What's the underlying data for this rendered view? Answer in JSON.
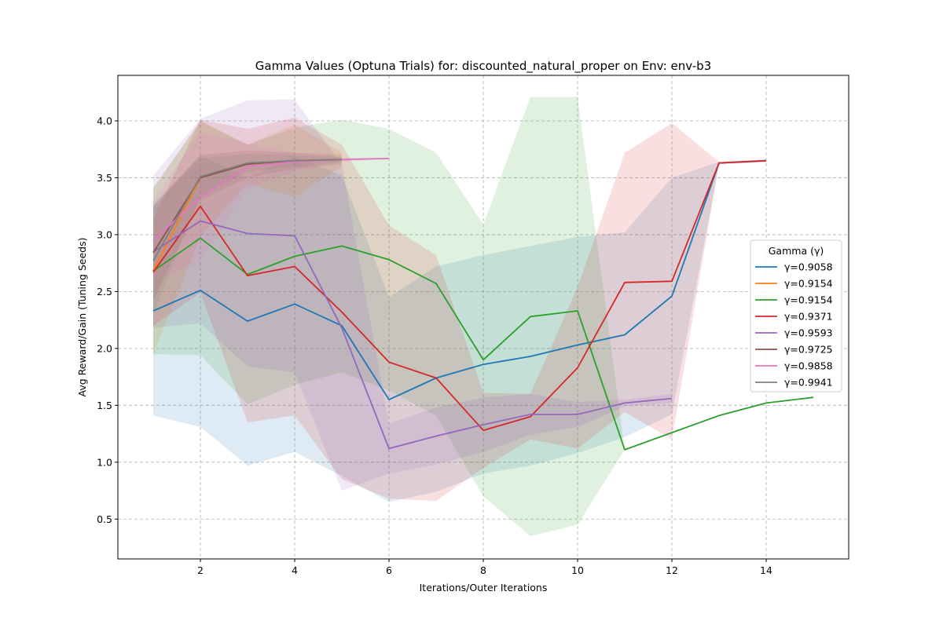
{
  "chart_data": {
    "type": "line",
    "title": "Gamma Values (Optuna Trials) for: discounted_natural_proper on Env: env-b3",
    "xlabel": "Iterations/Outer Iterations",
    "ylabel": "Avg Reward/Gain (Tuning Seeds)",
    "xlim": [
      0.25,
      15.75
    ],
    "ylim": [
      0.15,
      4.4
    ],
    "xticks": [
      2,
      4,
      6,
      8,
      10,
      12,
      14
    ],
    "yticks": [
      0.5,
      1.0,
      1.5,
      2.0,
      2.5,
      3.0,
      3.5,
      4.0
    ],
    "xtick_labels": [
      "2",
      "4",
      "6",
      "8",
      "10",
      "12",
      "14"
    ],
    "ytick_labels": [
      "0.5",
      "1.0",
      "1.5",
      "2.0",
      "2.5",
      "3.0",
      "3.5",
      "4.0"
    ],
    "grid": true,
    "legend": {
      "title": "Gamma (γ)",
      "placement": "center-right"
    },
    "series": [
      {
        "name": "γ=0.9058",
        "color": "#1f77b4",
        "x": [
          1,
          2,
          3,
          4,
          5,
          6,
          7,
          8,
          9,
          10,
          11,
          12,
          13,
          14
        ],
        "y": [
          2.33,
          2.51,
          2.24,
          2.39,
          2.2,
          1.55,
          1.74,
          1.86,
          1.93,
          2.03,
          2.12,
          2.46,
          3.63,
          3.65
        ],
        "lower": [
          1.41,
          1.31,
          0.97,
          1.09,
          0.88,
          0.65,
          0.74,
          0.9,
          0.97,
          1.08,
          1.22,
          1.42,
          3.62,
          3.64
        ],
        "upper": [
          3.25,
          3.7,
          3.5,
          3.69,
          3.52,
          2.45,
          2.72,
          2.82,
          2.9,
          2.98,
          3.02,
          3.5,
          3.64,
          3.66
        ]
      },
      {
        "name": "γ=0.9154",
        "color": "#ff7f0e",
        "x": [
          1,
          2,
          3,
          4,
          5
        ],
        "y": [
          2.68,
          3.5,
          3.62,
          3.65,
          3.66
        ],
        "lower": [
          1.95,
          2.98,
          3.45,
          3.33,
          3.6
        ],
        "upper": [
          3.41,
          4.0,
          3.79,
          3.97,
          3.72
        ]
      },
      {
        "name": "γ=0.9154",
        "color": "#2ca02c",
        "x": [
          1,
          2,
          3,
          4,
          5,
          6,
          7,
          8,
          9,
          10,
          11,
          12,
          13,
          14,
          15
        ],
        "y": [
          2.68,
          2.97,
          2.65,
          2.81,
          2.9,
          2.78,
          2.57,
          1.9,
          2.28,
          2.33,
          1.11,
          1.26,
          1.41,
          1.52,
          1.57
        ],
        "lower": [
          1.95,
          1.94,
          1.51,
          1.68,
          1.79,
          1.63,
          1.41,
          0.7,
          0.35,
          0.45,
          1.11,
          1.26,
          1.41,
          1.52,
          1.57
        ],
        "upper": [
          3.41,
          4.0,
          3.79,
          3.94,
          4.01,
          3.93,
          3.72,
          3.09,
          4.21,
          4.21,
          1.11,
          1.26,
          1.41,
          1.52,
          1.57
        ]
      },
      {
        "name": "γ=0.9371",
        "color": "#d62728",
        "x": [
          1,
          2,
          3,
          4,
          5,
          6,
          7,
          8,
          9,
          10,
          11,
          12,
          13,
          14
        ],
        "y": [
          2.67,
          3.25,
          2.64,
          2.72,
          2.32,
          1.88,
          1.74,
          1.28,
          1.4,
          1.83,
          2.58,
          2.59,
          3.63,
          3.65
        ],
        "lower": [
          2.2,
          2.49,
          1.35,
          1.41,
          0.85,
          0.68,
          0.66,
          0.95,
          1.2,
          1.12,
          1.44,
          1.2,
          3.62,
          3.64
        ],
        "upper": [
          3.14,
          4.01,
          3.93,
          4.03,
          3.79,
          3.08,
          2.82,
          1.61,
          1.6,
          2.54,
          3.72,
          3.98,
          3.64,
          3.66
        ]
      },
      {
        "name": "γ=0.9593",
        "color": "#9467bd",
        "x": [
          1,
          2,
          3,
          4,
          5,
          6,
          7,
          8,
          9,
          10,
          11,
          12
        ],
        "y": [
          2.85,
          3.12,
          3.01,
          2.99,
          2.18,
          1.12,
          1.23,
          1.33,
          1.42,
          1.42,
          1.52,
          1.56
        ],
        "lower": [
          2.18,
          2.22,
          1.84,
          1.79,
          0.75,
          0.9,
          0.98,
          1.09,
          1.24,
          1.31,
          1.49,
          1.52
        ],
        "upper": [
          3.52,
          4.02,
          4.18,
          4.19,
          3.61,
          1.34,
          1.48,
          1.57,
          1.6,
          1.53,
          1.55,
          1.6
        ]
      },
      {
        "name": "γ=0.9725",
        "color": "#8c564b",
        "x": [
          1,
          2,
          3,
          4,
          5
        ],
        "y": [
          2.84,
          3.5,
          3.62,
          3.65,
          3.66
        ],
        "lower": [
          2.42,
          3.3,
          3.5,
          3.58,
          3.62
        ],
        "upper": [
          3.26,
          3.7,
          3.74,
          3.72,
          3.7
        ]
      },
      {
        "name": "γ=0.9858",
        "color": "#e377c2",
        "x": [
          1,
          2,
          3,
          4,
          5,
          6
        ],
        "y": [
          2.95,
          3.33,
          3.6,
          3.64,
          3.66,
          3.67
        ],
        "lower": [
          2.6,
          2.76,
          3.4,
          3.56,
          3.64,
          3.67
        ],
        "upper": [
          3.3,
          3.9,
          3.8,
          3.72,
          3.68,
          3.67
        ]
      },
      {
        "name": "γ=0.9941",
        "color": "#7f7f7f",
        "x": [
          1,
          2,
          3,
          4,
          5
        ],
        "y": [
          2.77,
          3.51,
          3.63,
          3.65,
          3.66
        ],
        "lower": [
          2.3,
          3.35,
          3.55,
          3.6,
          3.64
        ],
        "upper": [
          3.24,
          3.67,
          3.71,
          3.7,
          3.68
        ]
      }
    ]
  }
}
